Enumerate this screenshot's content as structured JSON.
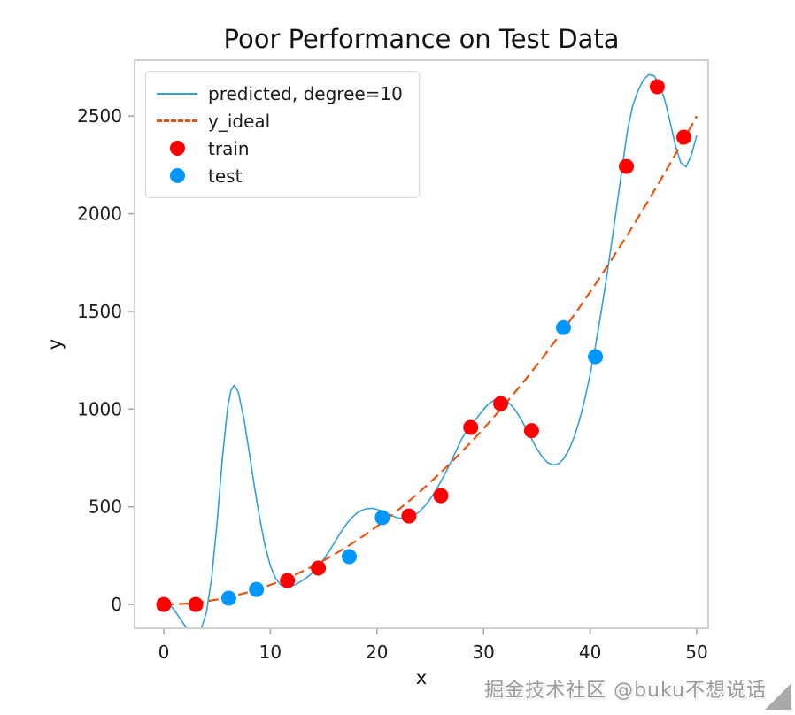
{
  "figure": {
    "background": "#ffffff",
    "spine_color": "#d0d0d0",
    "tick_color": "#a8a8a8",
    "text_color": "#1c1c1c"
  },
  "watermark": {
    "text": "掘金技术社区 @buku不想说话",
    "icon": "corner-triangle-icon",
    "color": "#9a9a9a"
  },
  "chart_data": {
    "type": "line",
    "title": "Poor Performance on Test Data",
    "xlabel": "x",
    "ylabel": "y",
    "xlim": [
      -2.74,
      51.08
    ],
    "ylim": [
      -122,
      2786
    ],
    "xticks": [
      0,
      10,
      20,
      30,
      40,
      50
    ],
    "yticks": [
      0,
      500,
      1000,
      1500,
      2000,
      2500
    ],
    "grid": false,
    "legend_position": "upper left",
    "series": [
      {
        "id": "predicted",
        "name": "predicted, degree=10",
        "kind": "line",
        "color": "#33a0d8",
        "width": 1.6,
        "points": [
          [
            0,
            25
          ],
          [
            0.5,
            5
          ],
          [
            1,
            -30
          ],
          [
            1.5,
            -70
          ],
          [
            2,
            -110
          ],
          [
            2.5,
            -145
          ],
          [
            3,
            -160
          ],
          [
            3.5,
            -128
          ],
          [
            4,
            -40
          ],
          [
            4.5,
            140
          ],
          [
            5,
            420
          ],
          [
            5.5,
            750
          ],
          [
            6,
            1010
          ],
          [
            6.3,
            1095
          ],
          [
            6.6,
            1122
          ],
          [
            7,
            1085
          ],
          [
            7.5,
            955
          ],
          [
            8,
            785
          ],
          [
            8.5,
            605
          ],
          [
            9,
            440
          ],
          [
            9.5,
            300
          ],
          [
            10,
            198
          ],
          [
            10.5,
            133
          ],
          [
            11,
            98
          ],
          [
            11.5,
            88
          ],
          [
            12,
            94
          ],
          [
            12.5,
            106
          ],
          [
            13,
            122
          ],
          [
            13.5,
            141
          ],
          [
            14,
            164
          ],
          [
            14.5,
            194
          ],
          [
            15,
            230
          ],
          [
            15.5,
            271
          ],
          [
            16,
            315
          ],
          [
            16.5,
            360
          ],
          [
            17,
            401
          ],
          [
            17.5,
            436
          ],
          [
            18,
            462
          ],
          [
            18.5,
            480
          ],
          [
            19,
            490
          ],
          [
            19.5,
            492
          ],
          [
            20,
            487
          ],
          [
            20.5,
            477
          ],
          [
            21,
            464
          ],
          [
            21.5,
            452
          ],
          [
            22,
            443
          ],
          [
            22.5,
            440
          ],
          [
            23,
            444
          ],
          [
            23.5,
            456
          ],
          [
            24,
            476
          ],
          [
            24.5,
            505
          ],
          [
            25,
            540
          ],
          [
            25.5,
            582
          ],
          [
            26,
            630
          ],
          [
            26.5,
            682
          ],
          [
            27,
            737
          ],
          [
            27.5,
            795
          ],
          [
            28,
            853
          ],
          [
            28.5,
            892
          ],
          [
            29,
            928
          ],
          [
            29.5,
            963
          ],
          [
            30,
            998
          ],
          [
            30.5,
            1027
          ],
          [
            31,
            1046
          ],
          [
            31.5,
            1053
          ],
          [
            32,
            1046
          ],
          [
            32.5,
            1026
          ],
          [
            33,
            993
          ],
          [
            33.5,
            950
          ],
          [
            34,
            900
          ],
          [
            34.5,
            848
          ],
          [
            35,
            798
          ],
          [
            35.5,
            756
          ],
          [
            36,
            727
          ],
          [
            36.5,
            714
          ],
          [
            37,
            719
          ],
          [
            37.5,
            744
          ],
          [
            38,
            790
          ],
          [
            38.5,
            856
          ],
          [
            39,
            943
          ],
          [
            39.5,
            1051
          ],
          [
            40,
            1178
          ],
          [
            40.5,
            1323
          ],
          [
            41,
            1484
          ],
          [
            41.5,
            1659
          ],
          [
            42,
            1845
          ],
          [
            42.5,
            2038
          ],
          [
            43,
            2233
          ],
          [
            43.5,
            2424
          ],
          [
            44,
            2556
          ],
          [
            44.5,
            2630
          ],
          [
            45,
            2686
          ],
          [
            45.5,
            2712
          ],
          [
            46,
            2706
          ],
          [
            46.5,
            2662
          ],
          [
            47,
            2582
          ],
          [
            47.5,
            2470
          ],
          [
            48,
            2350
          ],
          [
            48.5,
            2262
          ],
          [
            49,
            2240
          ],
          [
            49.5,
            2300
          ],
          [
            50,
            2400
          ]
        ]
      },
      {
        "id": "y_ideal",
        "name": "y_ideal",
        "kind": "line",
        "color": "#e8520f",
        "width": 2.2,
        "dash": "11 6",
        "points": [
          [
            0,
            0
          ],
          [
            1,
            1
          ],
          [
            2,
            4
          ],
          [
            3,
            9
          ],
          [
            4,
            16
          ],
          [
            5,
            25
          ],
          [
            6,
            36
          ],
          [
            7,
            49
          ],
          [
            8,
            64
          ],
          [
            9,
            81
          ],
          [
            10,
            100
          ],
          [
            11,
            121
          ],
          [
            12,
            144
          ],
          [
            13,
            169
          ],
          [
            14,
            196
          ],
          [
            15,
            225
          ],
          [
            16,
            256
          ],
          [
            17,
            289
          ],
          [
            18,
            324
          ],
          [
            19,
            361
          ],
          [
            20,
            400
          ],
          [
            21,
            441
          ],
          [
            22,
            484
          ],
          [
            23,
            529
          ],
          [
            24,
            576
          ],
          [
            25,
            625
          ],
          [
            26,
            676
          ],
          [
            27,
            729
          ],
          [
            28,
            784
          ],
          [
            29,
            841
          ],
          [
            30,
            900
          ],
          [
            31,
            961
          ],
          [
            32,
            1024
          ],
          [
            33,
            1089
          ],
          [
            34,
            1156
          ],
          [
            35,
            1225
          ],
          [
            36,
            1296
          ],
          [
            37,
            1369
          ],
          [
            38,
            1444
          ],
          [
            39,
            1521
          ],
          [
            40,
            1600
          ],
          [
            41,
            1681
          ],
          [
            42,
            1764
          ],
          [
            43,
            1849
          ],
          [
            44,
            1936
          ],
          [
            45,
            2025
          ],
          [
            46,
            2116
          ],
          [
            47,
            2209
          ],
          [
            48,
            2304
          ],
          [
            49,
            2401
          ],
          [
            50,
            2500
          ]
        ]
      },
      {
        "id": "train",
        "name": "train",
        "kind": "scatter",
        "color": "#ff0000",
        "radius": 8.5,
        "points": [
          [
            0,
            0
          ],
          [
            3,
            0
          ],
          [
            11.6,
            122
          ],
          [
            14.5,
            186
          ],
          [
            23,
            453
          ],
          [
            26,
            557
          ],
          [
            28.8,
            906
          ],
          [
            31.6,
            1028
          ],
          [
            34.5,
            890
          ],
          [
            43.4,
            2242
          ],
          [
            46.3,
            2650
          ],
          [
            48.8,
            2392
          ]
        ]
      },
      {
        "id": "test",
        "name": "test",
        "kind": "scatter",
        "color": "#0096ff",
        "radius": 8.5,
        "points": [
          [
            6.1,
            32
          ],
          [
            8.7,
            77
          ],
          [
            17.4,
            245
          ],
          [
            20.5,
            444
          ],
          [
            37.5,
            1417
          ],
          [
            40.5,
            1268
          ]
        ]
      }
    ]
  }
}
